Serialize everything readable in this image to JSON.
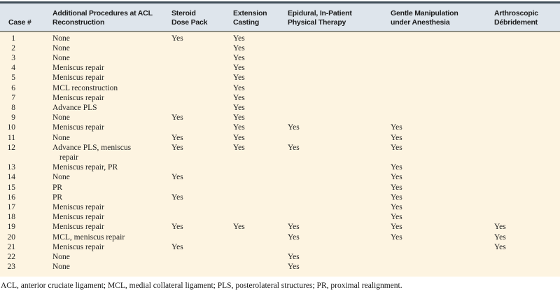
{
  "table": {
    "columns": [
      {
        "id": "case",
        "label": "Case #"
      },
      {
        "id": "procedures",
        "label": "Additional Procedures at ACL\nReconstruction"
      },
      {
        "id": "steroid-dose-pack",
        "label": "Steroid\nDose Pack"
      },
      {
        "id": "extension-casting",
        "label": "Extension\nCasting"
      },
      {
        "id": "epidural-pt",
        "label": "Epidural, In-Patient\nPhysical Therapy"
      },
      {
        "id": "manipulation",
        "label": "Gentle Manipulation\nunder Anesthesia"
      },
      {
        "id": "debridement",
        "label": "Arthroscopic\nDébridement"
      }
    ],
    "rows": [
      [
        "1",
        "None",
        "Yes",
        "Yes",
        "",
        "",
        ""
      ],
      [
        "2",
        "None",
        "",
        "Yes",
        "",
        "",
        ""
      ],
      [
        "3",
        "None",
        "",
        "Yes",
        "",
        "",
        ""
      ],
      [
        "4",
        "Meniscus repair",
        "",
        "Yes",
        "",
        "",
        ""
      ],
      [
        "5",
        "Meniscus repair",
        "",
        "Yes",
        "",
        "",
        ""
      ],
      [
        "6",
        "MCL reconstruction",
        "",
        "Yes",
        "",
        "",
        ""
      ],
      [
        "7",
        "Meniscus repair",
        "",
        "Yes",
        "",
        "",
        ""
      ],
      [
        "8",
        "Advance PLS",
        "",
        "Yes",
        "",
        "",
        ""
      ],
      [
        "9",
        "None",
        "Yes",
        "Yes",
        "",
        "",
        ""
      ],
      [
        "10",
        "Meniscus repair",
        "",
        "Yes",
        "Yes",
        "Yes",
        ""
      ],
      [
        "11",
        "None",
        "Yes",
        "Yes",
        "",
        "Yes",
        ""
      ],
      [
        "12",
        "Advance PLS, meniscus repair",
        "Yes",
        "Yes",
        "Yes",
        "Yes",
        ""
      ],
      [
        "13",
        "Meniscus repair, PR",
        "",
        "",
        "",
        "Yes",
        ""
      ],
      [
        "14",
        "None",
        "Yes",
        "",
        "",
        "Yes",
        ""
      ],
      [
        "15",
        "PR",
        "",
        "",
        "",
        "Yes",
        ""
      ],
      [
        "16",
        "PR",
        "Yes",
        "",
        "",
        "Yes",
        ""
      ],
      [
        "17",
        "Meniscus repair",
        "",
        "",
        "",
        "Yes",
        ""
      ],
      [
        "18",
        "Meniscus repair",
        "",
        "",
        "",
        "Yes",
        ""
      ],
      [
        "19",
        "Meniscus repair",
        "Yes",
        "Yes",
        "Yes",
        "Yes",
        "Yes"
      ],
      [
        "20",
        "MCL, meniscus repair",
        "",
        "",
        "Yes",
        "Yes",
        "Yes"
      ],
      [
        "21",
        "Meniscus repair",
        "Yes",
        "",
        "",
        "",
        "Yes"
      ],
      [
        "22",
        "None",
        "",
        "",
        "Yes",
        "",
        ""
      ],
      [
        "23",
        "None",
        "",
        "",
        "Yes",
        "",
        ""
      ]
    ]
  },
  "footnote": "ACL, anterior cruciate ligament; MCL, medial collateral ligament; PLS, posterolateral structures; PR, proximal realignment.",
  "colors": {
    "header_bg": "#dee5ec",
    "top_rule": "#404d58",
    "header_rule": "#8d8d82",
    "body_bg": "#fdf4e1",
    "text": "#1f1f1f"
  }
}
